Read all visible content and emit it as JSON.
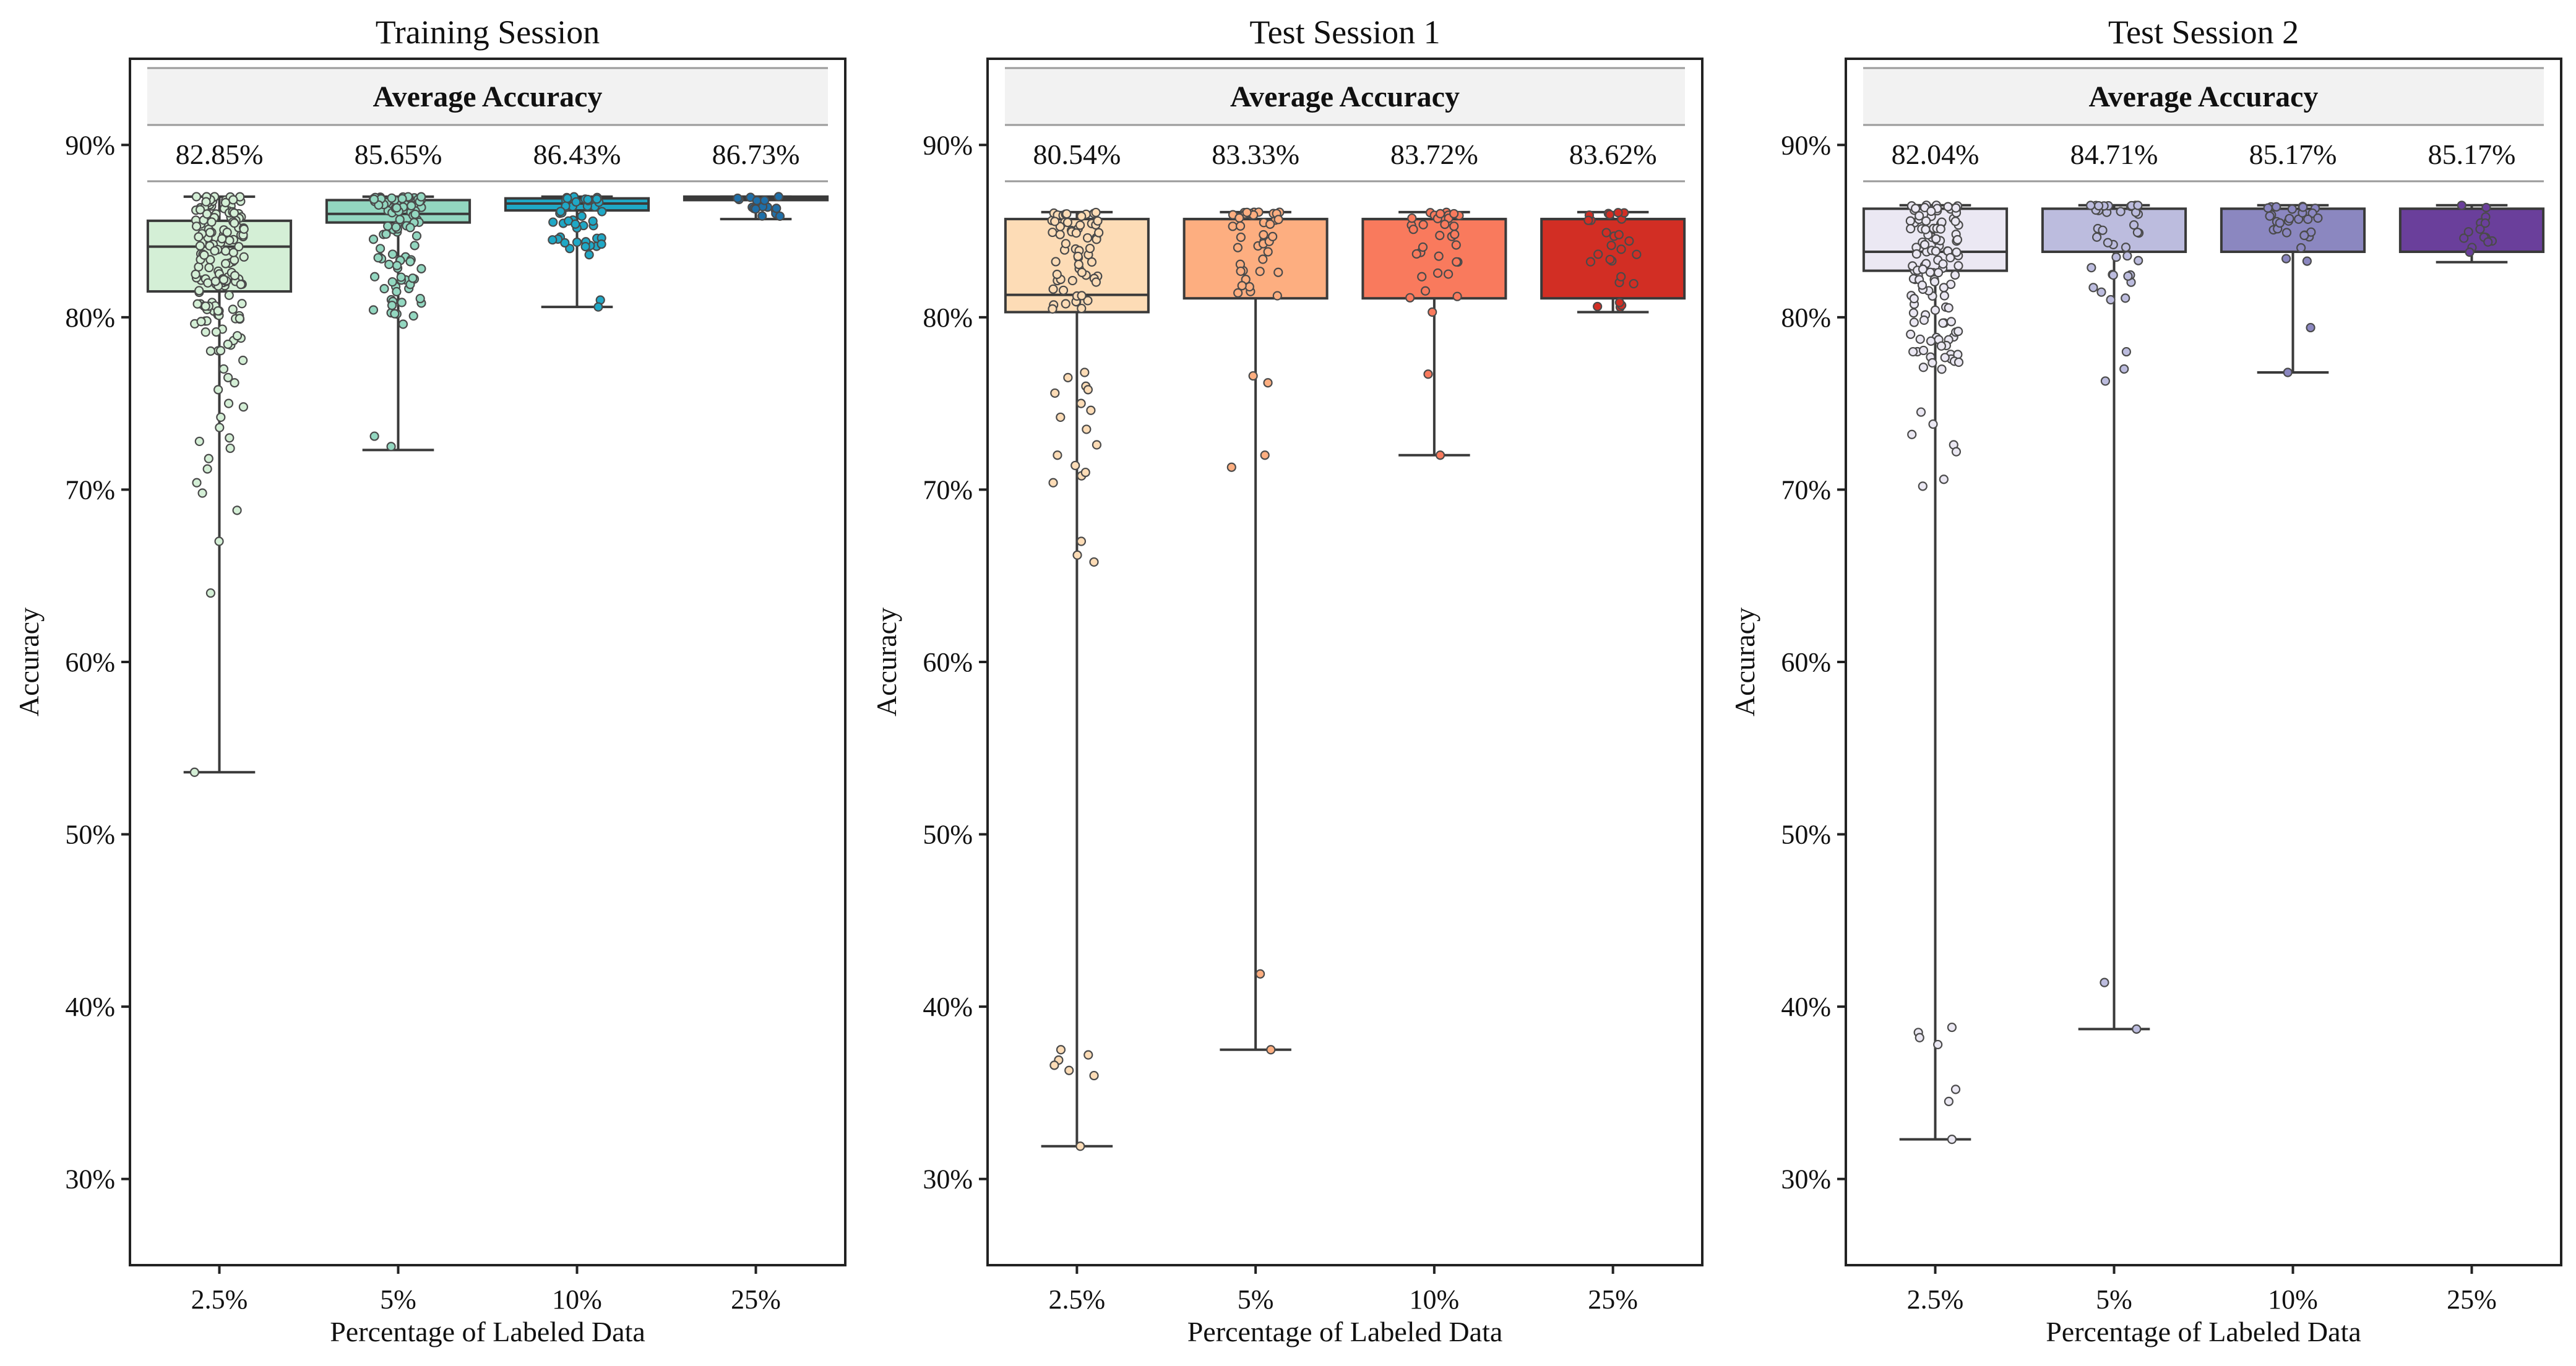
{
  "chart_data": [
    {
      "type": "box",
      "title": "Training Session",
      "xlabel": "Percentage of Labeled Data",
      "ylabel": "Accuracy",
      "ylim": [
        25,
        95
      ],
      "yticks": [
        30,
        40,
        50,
        60,
        70,
        80,
        90
      ],
      "ytick_labels": [
        "30%",
        "40%",
        "50%",
        "60%",
        "70%",
        "80%",
        "90%"
      ],
      "categories": [
        "2.5%",
        "5%",
        "10%",
        "25%"
      ],
      "palette": [
        "#d4efd6",
        "#93d7c0",
        "#1fa8c6",
        "#1f6fa8"
      ],
      "average_header": "Average Accuracy",
      "averages": [
        "82.85%",
        "85.65%",
        "86.43%",
        "86.73%"
      ],
      "boxes": [
        {
          "whisker_low": 53.6,
          "q1": 81.5,
          "median": 84.1,
          "q3": 85.6,
          "whisker_high": 87.0
        },
        {
          "whisker_low": 72.3,
          "q1": 85.5,
          "median": 86.0,
          "q3": 86.8,
          "whisker_high": 87.0
        },
        {
          "whisker_low": 80.6,
          "q1": 86.2,
          "median": 86.6,
          "q3": 86.9,
          "whisker_high": 87.0
        },
        {
          "whisker_low": 85.7,
          "q1": 86.8,
          "median": 86.9,
          "q3": 87.0,
          "whisker_high": 87.0
        }
      ],
      "points": [
        {
          "range": [
            78,
            87
          ],
          "n": 150,
          "extra": [
            77.5,
            76.5,
            75.8,
            75.0,
            74.2,
            73.6,
            73.0,
            72.4,
            71.8,
            71.2,
            70.4,
            69.8,
            68.8,
            67.0,
            64.0,
            53.6,
            72.8,
            74.8,
            76.2,
            77.0
          ]
        },
        {
          "range": [
            80,
            87
          ],
          "n": 90,
          "extra": [
            79.6,
            73.1,
            72.5
          ]
        },
        {
          "range": [
            83.5,
            87
          ],
          "n": 45,
          "extra": [
            81.0,
            80.6
          ]
        },
        {
          "range": [
            85.8,
            87
          ],
          "n": 16,
          "extra": []
        }
      ]
    },
    {
      "type": "box",
      "title": "Test Session 1",
      "xlabel": "Percentage of Labeled Data",
      "ylabel": "Accuracy",
      "ylim": [
        25,
        95
      ],
      "yticks": [
        30,
        40,
        50,
        60,
        70,
        80,
        90
      ],
      "ytick_labels": [
        "30%",
        "40%",
        "50%",
        "60%",
        "70%",
        "80%",
        "90%"
      ],
      "categories": [
        "2.5%",
        "5%",
        "10%",
        "25%"
      ],
      "palette": [
        "#fddcb6",
        "#fdae80",
        "#f97a5d",
        "#d22e24"
      ],
      "average_header": "Average Accuracy",
      "averages": [
        "80.54%",
        "83.33%",
        "83.72%",
        "83.62%"
      ],
      "boxes": [
        {
          "whisker_low": 31.9,
          "q1": 80.3,
          "median": 81.3,
          "q3": 85.7,
          "whisker_high": 86.1
        },
        {
          "whisker_low": 37.5,
          "q1": 81.1,
          "median": 85.7,
          "q3": 85.7,
          "whisker_high": 86.1
        },
        {
          "whisker_low": 72.0,
          "q1": 81.1,
          "median": 85.7,
          "q3": 85.7,
          "whisker_high": 86.1
        },
        {
          "whisker_low": 80.3,
          "q1": 81.1,
          "median": 85.7,
          "q3": 85.7,
          "whisker_high": 86.1
        }
      ],
      "points": [
        {
          "range": [
            80.2,
            86.1
          ],
          "n": 60,
          "extra": [
            76.5,
            76.0,
            75.6,
            75.0,
            74.6,
            74.2,
            73.5,
            72.6,
            72.0,
            71.4,
            70.8,
            70.4,
            67.0,
            66.2,
            65.8,
            37.2,
            36.9,
            36.6,
            36.3,
            36.0,
            37.5,
            31.9,
            75.8,
            71.0,
            76.8
          ]
        },
        {
          "range": [
            80.5,
            86.1
          ],
          "n": 40,
          "extra": [
            76.6,
            76.2,
            72.0,
            71.3,
            41.9,
            37.5
          ]
        },
        {
          "range": [
            80.5,
            86.1
          ],
          "n": 32,
          "extra": [
            80.3,
            76.7,
            72.0
          ]
        },
        {
          "range": [
            80.3,
            86.1
          ],
          "n": 26,
          "extra": []
        }
      ]
    },
    {
      "type": "box",
      "title": "Test Session 2",
      "xlabel": "Percentage of Labeled Data",
      "ylabel": "Accuracy",
      "ylim": [
        25,
        95
      ],
      "yticks": [
        30,
        40,
        50,
        60,
        70,
        80,
        90
      ],
      "ytick_labels": [
        "30%",
        "40%",
        "50%",
        "60%",
        "70%",
        "80%",
        "90%"
      ],
      "categories": [
        "2.5%",
        "5%",
        "10%",
        "25%"
      ],
      "palette": [
        "#ebe8f3",
        "#bcbcde",
        "#8b87c0",
        "#6a3f9b"
      ],
      "average_header": "Average Accuracy",
      "averages": [
        "82.04%",
        "84.71%",
        "85.17%",
        "85.17%"
      ],
      "boxes": [
        {
          "whisker_low": 32.3,
          "q1": 82.7,
          "median": 83.8,
          "q3": 86.3,
          "whisker_high": 86.5
        },
        {
          "whisker_low": 38.7,
          "q1": 83.8,
          "median": 83.8,
          "q3": 86.3,
          "whisker_high": 86.5
        },
        {
          "whisker_low": 76.8,
          "q1": 83.8,
          "median": 83.8,
          "q3": 86.3,
          "whisker_high": 86.5
        },
        {
          "whisker_low": 83.2,
          "q1": 83.8,
          "median": 83.8,
          "q3": 86.3,
          "whisker_high": 86.5
        }
      ],
      "points": [
        {
          "range": [
            76.5,
            86.5
          ],
          "n": 120,
          "extra": [
            74.5,
            73.8,
            73.2,
            72.6,
            72.2,
            70.6,
            70.2,
            38.8,
            38.5,
            38.2,
            37.8,
            35.2,
            34.5,
            32.3
          ]
        },
        {
          "range": [
            80.5,
            86.5
          ],
          "n": 40,
          "extra": [
            78.0,
            77.0,
            76.3,
            41.4,
            38.7
          ]
        },
        {
          "range": [
            83.2,
            86.5
          ],
          "n": 30,
          "extra": [
            79.4,
            76.8
          ]
        },
        {
          "range": [
            83.2,
            86.5
          ],
          "n": 14,
          "extra": []
        }
      ]
    }
  ]
}
